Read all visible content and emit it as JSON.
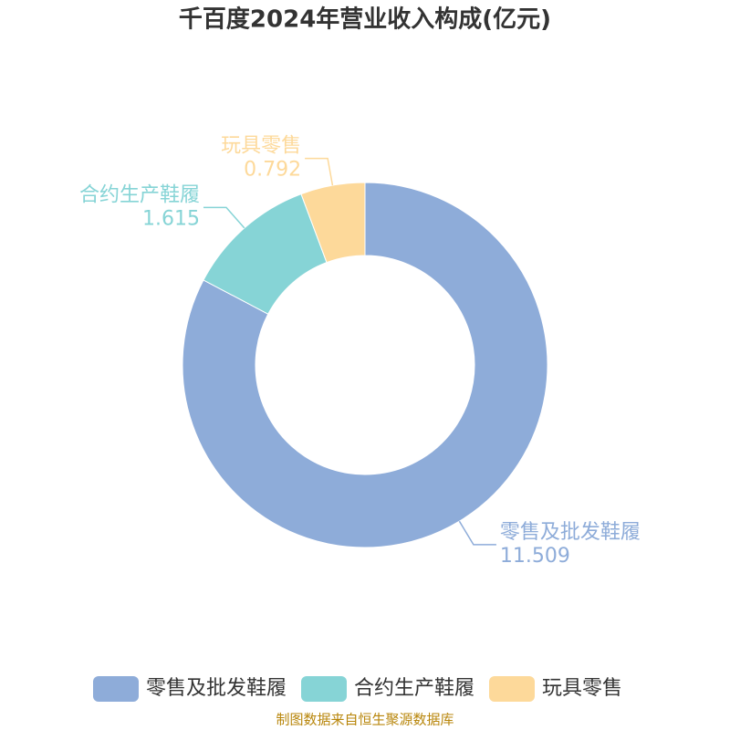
{
  "chart_data": {
    "type": "donut",
    "title": "千百度2024年营业收入构成(亿元)",
    "categories": [
      "零售及批发鞋履",
      "合约生产鞋履",
      "玩具零售"
    ],
    "values": [
      11.509,
      1.615,
      0.792
    ],
    "colors": [
      "#8eacd9",
      "#86d4d6",
      "#fdd99a"
    ],
    "source": "制图数据来自恒生聚源数据库"
  }
}
